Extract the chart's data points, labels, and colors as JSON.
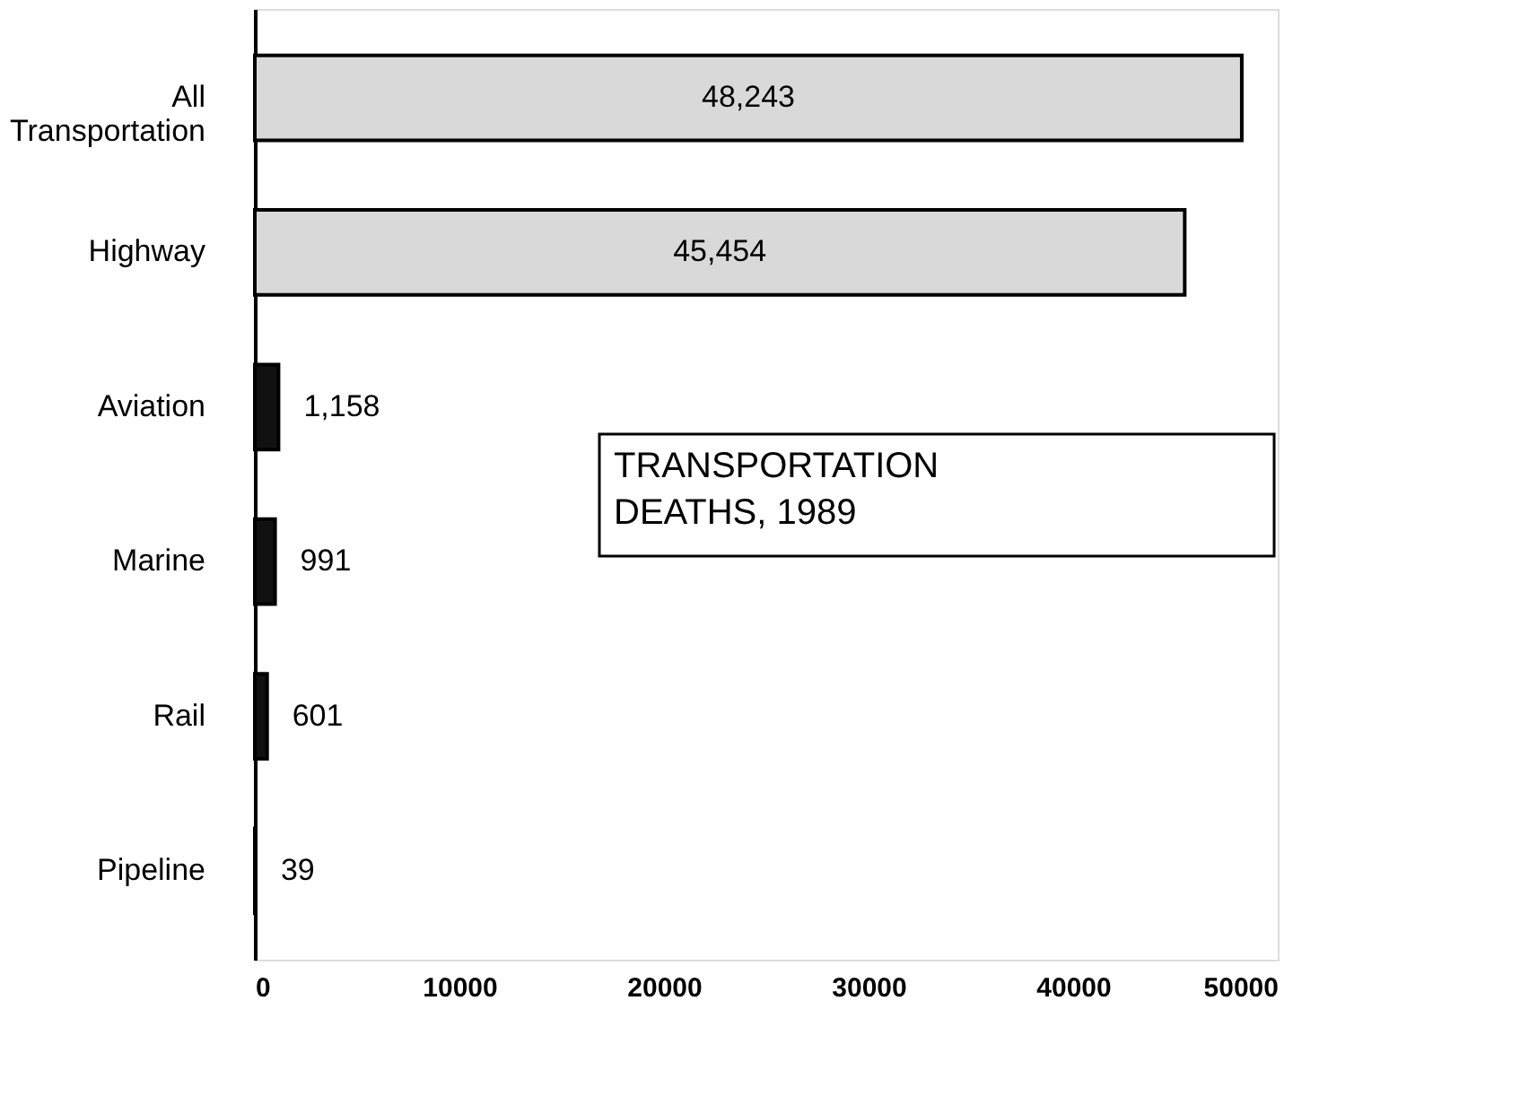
{
  "chart_data": {
    "type": "bar",
    "orientation": "horizontal",
    "title": "TRANSPORTATION\nDEATHS, 1989",
    "categories": [
      "All Transportation",
      "Highway",
      "Aviation",
      "Marine",
      "Rail",
      "Pipeline"
    ],
    "values": [
      48243,
      45454,
      1158,
      991,
      601,
      39
    ],
    "colors": [
      "#d9d9d9",
      "#d9d9d9",
      "#111111",
      "#111111",
      "#111111",
      "#111111"
    ],
    "value_labels": [
      "48,243",
      "45,454",
      "1,158",
      "991",
      "601",
      "39"
    ],
    "xlim": [
      0,
      50000
    ],
    "xticks": [
      0,
      10000,
      20000,
      30000,
      40000,
      50000
    ],
    "grid": false
  }
}
